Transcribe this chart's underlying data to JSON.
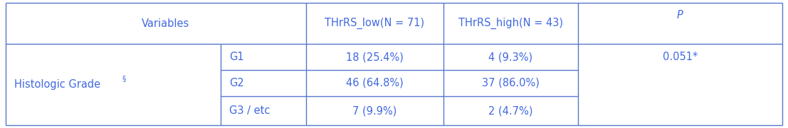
{
  "header_col0": "Variables",
  "header_col2": "THrRS_low(N = 71)",
  "header_col3": "THrRS_high(N = 43)",
  "header_col4": "P",
  "row_label": "Histologic Grade",
  "row_label_superscript": "§",
  "sub_labels": [
    "G1",
    "G2",
    "G3 / etc"
  ],
  "low_vals": [
    "18 (25.4%)",
    "46 (64.8%)",
    "7 (9.9%)"
  ],
  "high_vals": [
    "4 (9.3%)",
    "37 (86.0%)",
    "2 (4.7%)"
  ],
  "p_val": "0.051*",
  "text_color": "#4169E1",
  "line_color": "#5577CC",
  "bg_color": "#ffffff",
  "font_size": 10.5,
  "figwidth": 11.07,
  "figheight": 1.81,
  "dpi": 100
}
